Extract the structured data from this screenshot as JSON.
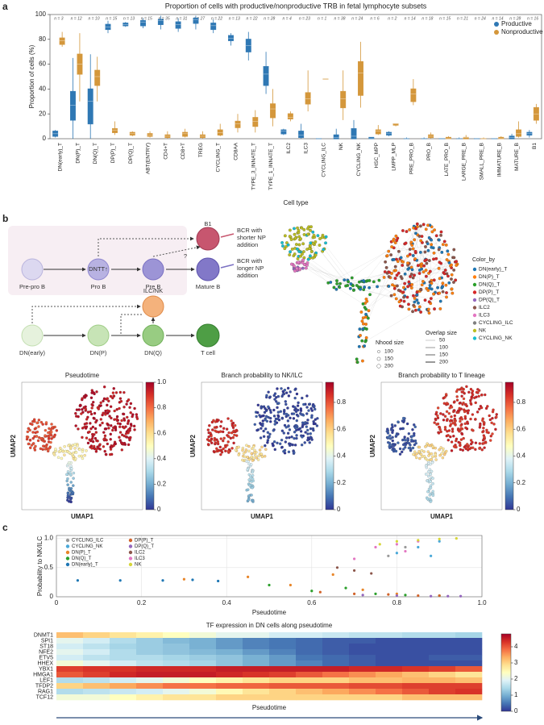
{
  "panel_labels": [
    "a",
    "b",
    "c"
  ],
  "chart_data": [
    {
      "type": "box",
      "title": "Proportion of cells with productive/nonproductive TRB in fetal lymphocyte subsets",
      "ylabel": "Proportion of cells (%)",
      "xlabel": "Cell type",
      "categories": [
        "DN(early)_T",
        "DN(P)_T",
        "DN(Q)_T",
        "DP(P)_T",
        "DP(Q)_T",
        "ABT(ENTRY)",
        "CD4+T",
        "CD8+T",
        "TREG",
        "CYCLING_T",
        "CD8AA",
        "TYPE_3_INNATE_T",
        "TYPE_1_INNATE_T",
        "ILC2",
        "ILC3",
        "CYCLING_ILC",
        "NK",
        "CYCLING_NK",
        "HSC_MPP",
        "LMPP_MLP",
        "PRE_PRO_B",
        "PRO_B",
        "LATE_PRO_B",
        "LARGE_PRE_B",
        "SMALL_PRE_B",
        "IMMATURE_B",
        "MATURE_B",
        "B1"
      ],
      "n_labels": [
        "n = 3",
        "n = 12",
        "n = 10",
        "n = 15",
        "n = 13",
        "n = 15",
        "n = 35",
        "n = 31",
        "n = 27",
        "n = 22",
        "n = 13",
        "n = 22",
        "n = 28",
        "n = 4",
        "n = 23",
        "n = 1",
        "n = 38",
        "n = 24",
        "n = 6",
        "n = 2",
        "n = 14",
        "n = 18",
        "n = 15",
        "n = 21",
        "n = 24",
        "n = 14",
        "n = 28",
        "n = 16"
      ],
      "series": [
        {
          "name": "Productive",
          "color": "#2f78b4",
          "values": [
            [
              1,
              2,
              4,
              6,
              7
            ],
            [
              0,
              15,
              27,
              38,
              65
            ],
            [
              0,
              12,
              30,
              40,
              68
            ],
            [
              85,
              88,
              90,
              92,
              95
            ],
            [
              90,
              91,
              92,
              93,
              94
            ],
            [
              89,
              91,
              94,
              95,
              97
            ],
            [
              88,
              92,
              95,
              96,
              99
            ],
            [
              86,
              89,
              92,
              94,
              97
            ],
            [
              88,
              93,
              96,
              97,
              99
            ],
            [
              85,
              88,
              91,
              93,
              96
            ],
            [
              75,
              79,
              81,
              83,
              85
            ],
            [
              63,
              70,
              75,
              80,
              86
            ],
            [
              36,
              43,
              52,
              58,
              70
            ],
            [
              3,
              4,
              6,
              7,
              8
            ],
            [
              0,
              1,
              3,
              6,
              12
            ],
            [
              0,
              0,
              0,
              0,
              0
            ],
            [
              0,
              0,
              1,
              3,
              8
            ],
            [
              0,
              0,
              2,
              8,
              15
            ],
            [
              0,
              0,
              0,
              1,
              1
            ],
            [
              2,
              3,
              4,
              5,
              6
            ],
            [
              0,
              0,
              0,
              0,
              1
            ],
            [
              0,
              0,
              0,
              0,
              1
            ],
            [
              0,
              0,
              0,
              0,
              0
            ],
            [
              0,
              0,
              0,
              0,
              1
            ],
            [
              0,
              0,
              0,
              0,
              0
            ],
            [
              0,
              0,
              0,
              0,
              0
            ],
            [
              0,
              0,
              1,
              2,
              4
            ],
            [
              1,
              3,
              4,
              5,
              7
            ]
          ]
        },
        {
          "name": "Nonproductive",
          "color": "#d4973b",
          "values": [
            [
              74,
              76,
              79,
              81,
              86
            ],
            [
              30,
              52,
              60,
              68,
              85
            ],
            [
              30,
              43,
              50,
              55,
              66
            ],
            [
              3,
              5,
              7,
              8,
              14
            ],
            [
              2,
              3,
              4,
              5,
              6
            ],
            [
              1,
              2,
              3,
              4,
              6
            ],
            [
              0,
              1,
              2,
              3,
              6
            ],
            [
              1,
              2,
              4,
              5,
              8
            ],
            [
              0,
              1,
              2,
              3,
              6
            ],
            [
              2,
              3,
              5,
              7,
              12
            ],
            [
              5,
              9,
              12,
              14,
              20
            ],
            [
              5,
              10,
              14,
              17,
              23
            ],
            [
              10,
              17,
              24,
              28,
              40
            ],
            [
              14,
              16,
              17,
              20,
              22
            ],
            [
              22,
              28,
              32,
              37,
              55
            ],
            [
              48,
              48,
              48,
              48,
              48
            ],
            [
              15,
              25,
              32,
              38,
              55
            ],
            [
              25,
              35,
              53,
              62,
              78
            ],
            [
              3,
              4,
              6,
              7,
              11
            ],
            [
              10,
              11,
              12,
              12,
              12
            ],
            [
              27,
              30,
              36,
              40,
              48
            ],
            [
              0,
              1,
              2,
              3,
              5
            ],
            [
              0,
              0,
              0,
              1,
              2
            ],
            [
              0,
              0,
              1,
              1,
              3
            ],
            [
              0,
              0,
              0,
              0,
              1
            ],
            [
              0,
              0,
              0,
              1,
              2
            ],
            [
              1,
              2,
              4,
              7,
              14
            ],
            [
              12,
              15,
              20,
              25,
              28
            ]
          ]
        }
      ],
      "ylim": [
        0,
        100
      ],
      "yticks": [
        0,
        20,
        40,
        60,
        80,
        100
      ],
      "legend": "upper right"
    },
    {
      "type": "scatter",
      "ylabel": "Probability to NK/ILC",
      "xlabel": "Pseudotime",
      "xlim": [
        0,
        1
      ],
      "xticks": [
        0,
        0.2,
        0.4,
        0.6,
        0.8,
        {
          "value": 1,
          "label": "1.0"
        }
      ],
      "ylim": [
        0,
        1.05
      ],
      "yticks": [
        0,
        0.5,
        {
          "value": 1,
          "label": "1.0"
        }
      ],
      "grid": true,
      "legend": "upper left",
      "series": [
        {
          "name": "CYCLING_ILC",
          "color": "#9a9a9a",
          "x": [
            0.78,
            0.82
          ],
          "y": [
            0.7,
            0.85
          ]
        },
        {
          "name": "CYCLING_NK",
          "color": "#4aa8d8",
          "x": [
            0.8,
            0.85,
            0.88,
            0.9
          ],
          "y": [
            0.75,
            0.85,
            0.7,
            0.95
          ]
        },
        {
          "name": "DN(P)_T",
          "color": "#e8862a",
          "x": [
            0.3,
            0.45,
            0.55,
            0.65,
            0.72,
            0.8
          ],
          "y": [
            0.3,
            0.34,
            0.2,
            0.38,
            0.12,
            0.05
          ]
        },
        {
          "name": "DN(Q)_T",
          "color": "#2ca02c",
          "x": [
            0.5,
            0.6,
            0.68,
            0.75,
            0.82,
            0.9
          ],
          "y": [
            0.2,
            0.1,
            0.15,
            0.05,
            0.03,
            0.02
          ]
        },
        {
          "name": "DN(early)_T",
          "color": "#1f77b4",
          "x": [
            0.05,
            0.15,
            0.25,
            0.32,
            0.38
          ],
          "y": [
            0.28,
            0.28,
            0.28,
            0.29,
            0.27
          ]
        },
        {
          "name": "DP(P)_T",
          "color": "#d2632a",
          "x": [
            0.62,
            0.7,
            0.78,
            0.85,
            0.9
          ],
          "y": [
            0.08,
            0.05,
            0.04,
            0.02,
            0.02
          ]
        },
        {
          "name": "DP(Q)_T",
          "color": "#9467bd",
          "x": [
            0.72,
            0.8,
            0.88,
            0.92,
            0.95
          ],
          "y": [
            0.03,
            0.02,
            0.01,
            0.01,
            0.01
          ]
        },
        {
          "name": "ILC2",
          "color": "#8c564b",
          "x": [
            0.66,
            0.7,
            0.74
          ],
          "y": [
            0.5,
            0.45,
            0.4
          ]
        },
        {
          "name": "ILC3",
          "color": "#e377c2",
          "x": [
            0.7,
            0.75,
            0.8,
            0.82,
            0.85
          ],
          "y": [
            0.65,
            0.85,
            0.9,
            0.78,
            0.95
          ]
        },
        {
          "name": "NK",
          "color": "#d6d63a",
          "x": [
            0.76,
            0.8,
            0.85,
            0.9,
            0.94
          ],
          "y": [
            0.9,
            0.95,
            0.97,
            0.99,
            1.0
          ]
        }
      ]
    },
    {
      "type": "heatmap",
      "title": "TF expression in DN cells along pseudotime",
      "xlabel": "Pseudotime",
      "rows": [
        "DNMT1",
        "SPI1",
        "ST18",
        "NFE2",
        "ETV5",
        "HHEX",
        "YBX1",
        "HMGA1",
        "LEF1",
        "TFDP2",
        "RAG1",
        "TCF12"
      ],
      "values": [
        [
          3.2,
          3,
          2.8,
          2.6,
          2.4,
          2.2,
          2,
          2,
          1.8,
          1.8,
          1.7,
          1.6,
          1.6,
          1.5,
          1.5,
          1.4
        ],
        [
          2,
          1.8,
          1.5,
          1.3,
          1.1,
          1,
          0.8,
          0.6,
          0.5,
          0.4,
          0.3,
          0.3,
          0.2,
          0.2,
          0.2,
          0.2
        ],
        [
          1.8,
          1.6,
          1.4,
          1.3,
          1.2,
          1,
          0.8,
          0.6,
          0.5,
          0.4,
          0.3,
          0.2,
          0.2,
          0.2,
          0.2,
          0.2
        ],
        [
          2,
          1.8,
          1.5,
          1.3,
          1.2,
          1.1,
          1,
          0.8,
          0.6,
          0.4,
          0.3,
          0.2,
          0.2,
          0.2,
          0.2,
          0.2
        ],
        [
          1.8,
          1.6,
          1.5,
          1.5,
          1.4,
          1.3,
          1.2,
          1,
          0.8,
          0.5,
          0.4,
          0.3,
          0.2,
          0.2,
          0.3,
          0.3
        ],
        [
          2.2,
          2,
          1.8,
          1.6,
          1.5,
          1.4,
          1.2,
          1,
          0.8,
          0.6,
          0.4,
          0.3,
          0.2,
          0.2,
          0.2,
          0.2
        ],
        [
          4.2,
          4.3,
          4.3,
          4.4,
          4.4,
          4.4,
          4.5,
          4.5,
          4.5,
          4.5,
          4.5,
          4.4,
          4.4,
          4.3,
          4.2,
          4
        ],
        [
          4,
          4.2,
          4.4,
          4.5,
          4.5,
          4.5,
          4.4,
          4.3,
          4.2,
          4,
          3.8,
          3.6,
          3.4,
          3.2,
          3,
          2.8
        ],
        [
          1.5,
          1.6,
          1.8,
          2,
          2.2,
          2.4,
          2.6,
          2.8,
          3,
          3,
          3,
          3.2,
          3.2,
          3.3,
          3.3,
          3.2
        ],
        [
          3,
          3.2,
          3.4,
          3.6,
          3.8,
          3.8,
          3.9,
          3.9,
          4,
          4,
          4,
          4.1,
          4.1,
          4.2,
          4.2,
          4.2
        ],
        [
          1.5,
          1.6,
          1.7,
          1.8,
          2,
          2.2,
          2.5,
          2.8,
          3,
          3.2,
          3.4,
          3.6,
          3.8,
          4,
          4.2,
          4.3
        ],
        [
          2.2,
          2.2,
          2.4,
          2.6,
          2.8,
          2.8,
          3,
          3,
          3,
          3,
          3,
          3,
          3,
          3.2,
          3.2,
          3.2
        ]
      ],
      "clim": [
        0,
        4.8
      ],
      "cticks": [
        0,
        1,
        2,
        3,
        4
      ],
      "colormap": [
        "#313695",
        "#4575b4",
        "#74add1",
        "#abd9e9",
        "#e0f3f8",
        "#ffffbf",
        "#fee090",
        "#fdae61",
        "#f46d43",
        "#d73027",
        "#a50026"
      ]
    }
  ],
  "diagram": {
    "b_lineage": [
      "Pre-pro B",
      "Pro B",
      "Pre B",
      "Mature B"
    ],
    "b1": "B1",
    "dntt": "DNTT↑",
    "question": "?",
    "bcr_short": [
      "BCR with",
      "shorter NP",
      "addition"
    ],
    "bcr_long": [
      "BCR with",
      "longer NP",
      "addition"
    ],
    "t_lineage": [
      "DN(early)",
      "DN(P)",
      "DN(Q)",
      "T cell"
    ],
    "ilc_nk": "ILC/NK"
  },
  "network": {
    "color_by_title": "Color_by",
    "color_by": [
      {
        "name": "DN(early)_T",
        "color": "#1f77b4"
      },
      {
        "name": "DN(P)_T",
        "color": "#ff7f0e"
      },
      {
        "name": "DN(Q)_T",
        "color": "#2ca02c"
      },
      {
        "name": "DP(P)_T",
        "color": "#d62728"
      },
      {
        "name": "DP(Q)_T",
        "color": "#9467bd"
      },
      {
        "name": "ILC2",
        "color": "#8c564b"
      },
      {
        "name": "ILC3",
        "color": "#e377c2"
      },
      {
        "name": "CYCLING_ILC",
        "color": "#7f7f7f"
      },
      {
        "name": "NK",
        "color": "#bcbd22"
      },
      {
        "name": "CYCLING_NK",
        "color": "#17becf"
      }
    ],
    "nhood_title": "Nhood size",
    "nhood": [
      100,
      150,
      200
    ],
    "overlap_title": "Overlap size",
    "overlap": [
      50,
      100,
      150,
      200
    ]
  },
  "umap": {
    "xlabel": "UMAP1",
    "ylabel": "UMAP2",
    "colormap": [
      "#313695",
      "#4575b4",
      "#74add1",
      "#abd9e9",
      "#e0f3f8",
      "#ffffbf",
      "#fee090",
      "#fdae61",
      "#f46d43",
      "#d73027",
      "#a50026"
    ],
    "panels": [
      {
        "title": "Pseudotime",
        "clim": [
          0,
          1
        ],
        "cticks": [
          0,
          0.2,
          0.4,
          0.6,
          0.8,
          {
            "value": 1,
            "label": "1.0"
          }
        ]
      },
      {
        "title": "Branch probability to NK/ILC",
        "clim": [
          0,
          0.95
        ],
        "cticks": [
          0,
          0.2,
          0.4,
          0.6,
          0.8
        ]
      },
      {
        "title": "Branch probability to T lineage",
        "clim": [
          0,
          0.95
        ],
        "cticks": [
          0,
          0.2,
          0.4,
          0.6,
          0.8
        ]
      }
    ]
  }
}
